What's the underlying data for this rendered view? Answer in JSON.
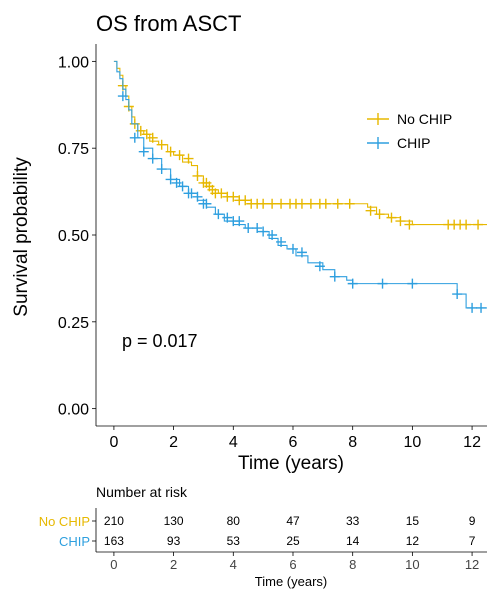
{
  "chart_data": {
    "type": "line",
    "subtype": "kaplan-meier",
    "title": "OS from ASCT",
    "xlabel": "Time (years)",
    "ylabel": "Survival probability",
    "xlim": [
      -0.6,
      12.5
    ],
    "ylim": [
      -0.05,
      1.05
    ],
    "x_ticks": [
      0,
      2,
      4,
      6,
      8,
      10,
      12
    ],
    "y_ticks": [
      0,
      0.25,
      0.5,
      0.75,
      1
    ],
    "y_tick_labels": [
      "0.00",
      "0.25",
      "0.50",
      "0.75",
      "1.00"
    ],
    "grid": false,
    "legend_position": "right",
    "annotation": "p = 0.017",
    "colors": {
      "No CHIP": "#E7B800",
      "CHIP": "#2E9FDF"
    },
    "series": [
      {
        "name": "No CHIP",
        "color": "#E7B800",
        "x": [
          0,
          0.1,
          0.2,
          0.3,
          0.4,
          0.5,
          0.6,
          0.7,
          0.8,
          1.0,
          1.2,
          1.5,
          1.8,
          2.0,
          2.3,
          2.6,
          2.8,
          3.0,
          3.2,
          3.5,
          3.8,
          4.2,
          4.6,
          5.0,
          6.0,
          7.0,
          8.0,
          8.5,
          8.8,
          9.2,
          9.6,
          10.0,
          11.5,
          12.5
        ],
        "y": [
          1.0,
          0.98,
          0.96,
          0.93,
          0.9,
          0.87,
          0.84,
          0.82,
          0.8,
          0.79,
          0.77,
          0.76,
          0.74,
          0.73,
          0.71,
          0.7,
          0.67,
          0.65,
          0.63,
          0.62,
          0.61,
          0.6,
          0.59,
          0.59,
          0.59,
          0.59,
          0.59,
          0.58,
          0.56,
          0.55,
          0.54,
          0.53,
          0.53,
          0.53
        ],
        "censored_x": [
          0.3,
          0.5,
          0.7,
          0.9,
          1.1,
          1.3,
          1.6,
          1.9,
          2.2,
          2.5,
          2.8,
          3.0,
          3.1,
          3.2,
          3.3,
          3.4,
          3.6,
          3.8,
          4.0,
          4.2,
          4.4,
          4.6,
          4.8,
          5.0,
          5.3,
          5.6,
          5.9,
          6.1,
          6.3,
          6.6,
          6.9,
          7.1,
          7.5,
          7.9,
          8.6,
          8.9,
          9.3,
          9.6,
          9.9,
          11.2,
          11.4,
          11.6,
          11.8,
          12.2
        ],
        "censored_y": [
          0.93,
          0.87,
          0.82,
          0.8,
          0.79,
          0.78,
          0.76,
          0.74,
          0.73,
          0.72,
          0.67,
          0.65,
          0.65,
          0.64,
          0.63,
          0.62,
          0.62,
          0.61,
          0.61,
          0.6,
          0.6,
          0.59,
          0.59,
          0.59,
          0.59,
          0.59,
          0.59,
          0.59,
          0.59,
          0.59,
          0.59,
          0.59,
          0.59,
          0.59,
          0.57,
          0.56,
          0.55,
          0.54,
          0.53,
          0.53,
          0.53,
          0.53,
          0.53,
          0.53
        ]
      },
      {
        "name": "CHIP",
        "color": "#2E9FDF",
        "x": [
          0,
          0.1,
          0.2,
          0.3,
          0.4,
          0.5,
          0.6,
          0.8,
          1.0,
          1.3,
          1.6,
          1.9,
          2.2,
          2.5,
          2.8,
          3.1,
          3.4,
          3.7,
          4.0,
          4.4,
          4.8,
          5.2,
          5.5,
          5.8,
          6.1,
          6.5,
          7.0,
          7.4,
          7.8,
          8.0,
          11.5,
          11.8,
          12.5
        ],
        "y": [
          1.0,
          0.97,
          0.95,
          0.92,
          0.89,
          0.86,
          0.82,
          0.78,
          0.75,
          0.72,
          0.69,
          0.66,
          0.64,
          0.62,
          0.6,
          0.58,
          0.56,
          0.54,
          0.53,
          0.52,
          0.51,
          0.49,
          0.47,
          0.46,
          0.44,
          0.42,
          0.4,
          0.38,
          0.37,
          0.36,
          0.33,
          0.29,
          0.29
        ],
        "censored_x": [
          0.3,
          0.7,
          1.0,
          1.3,
          1.6,
          1.9,
          2.1,
          2.3,
          2.5,
          2.6,
          2.8,
          3.0,
          3.1,
          3.5,
          3.8,
          4.0,
          4.2,
          4.5,
          4.8,
          5.0,
          5.3,
          5.6,
          6.0,
          6.3,
          6.9,
          7.4,
          8.0,
          9.0,
          10.0,
          11.5,
          12.0,
          12.3
        ],
        "censored_y": [
          0.9,
          0.78,
          0.74,
          0.72,
          0.69,
          0.66,
          0.65,
          0.64,
          0.62,
          0.62,
          0.61,
          0.59,
          0.59,
          0.56,
          0.55,
          0.54,
          0.54,
          0.52,
          0.52,
          0.51,
          0.5,
          0.48,
          0.46,
          0.45,
          0.41,
          0.38,
          0.36,
          0.36,
          0.36,
          0.33,
          0.29,
          0.29
        ]
      }
    ],
    "risk_table": {
      "title": "Number at risk",
      "xlabel": "Time (years)",
      "times": [
        0,
        2,
        4,
        6,
        8,
        10,
        12
      ],
      "rows": [
        {
          "name": "No CHIP",
          "color": "#E7B800",
          "values": [
            210,
            130,
            80,
            47,
            33,
            15,
            9
          ]
        },
        {
          "name": "CHIP",
          "color": "#2E9FDF",
          "values": [
            163,
            93,
            53,
            25,
            14,
            12,
            7
          ]
        }
      ]
    }
  }
}
